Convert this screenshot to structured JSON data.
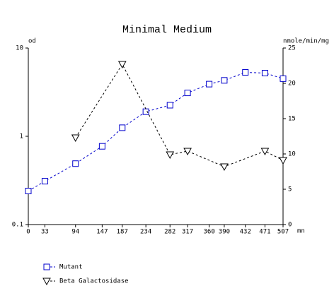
{
  "chart_data": {
    "type": "line",
    "title": "Minimal Medium",
    "y_label": "od",
    "y2_label": "nmole/min/mg",
    "x_label": "mn",
    "xlim": [
      0,
      507
    ],
    "xticks": [
      0,
      33,
      94,
      147,
      187,
      234,
      282,
      317,
      360,
      390,
      432,
      471,
      507
    ],
    "ylim": [
      0.1,
      10
    ],
    "yticks": [
      0.1,
      1,
      10
    ],
    "y_scale": "log",
    "y2lim": [
      0,
      25
    ],
    "y2ticks": [
      0,
      5,
      10,
      15,
      20,
      25
    ],
    "series": [
      {
        "name": "Mutant",
        "color": "#0000cc",
        "marker": "square",
        "x": [
          0,
          33,
          94,
          147,
          187,
          234,
          282,
          317,
          360,
          390,
          432,
          471,
          507
        ],
        "values": [
          0.24,
          0.31,
          0.49,
          0.77,
          1.25,
          1.9,
          2.25,
          3.1,
          3.9,
          4.3,
          5.3,
          5.2,
          4.5
        ]
      },
      {
        "name": "Beta Galactosidase",
        "color": "#000000",
        "marker": "triangle",
        "axis": "y2",
        "x": [
          94,
          187,
          282,
          317,
          390,
          471,
          507
        ],
        "values": [
          12.3,
          22.7,
          9.9,
          10.4,
          8.2,
          10.4,
          9.1
        ]
      }
    ]
  }
}
